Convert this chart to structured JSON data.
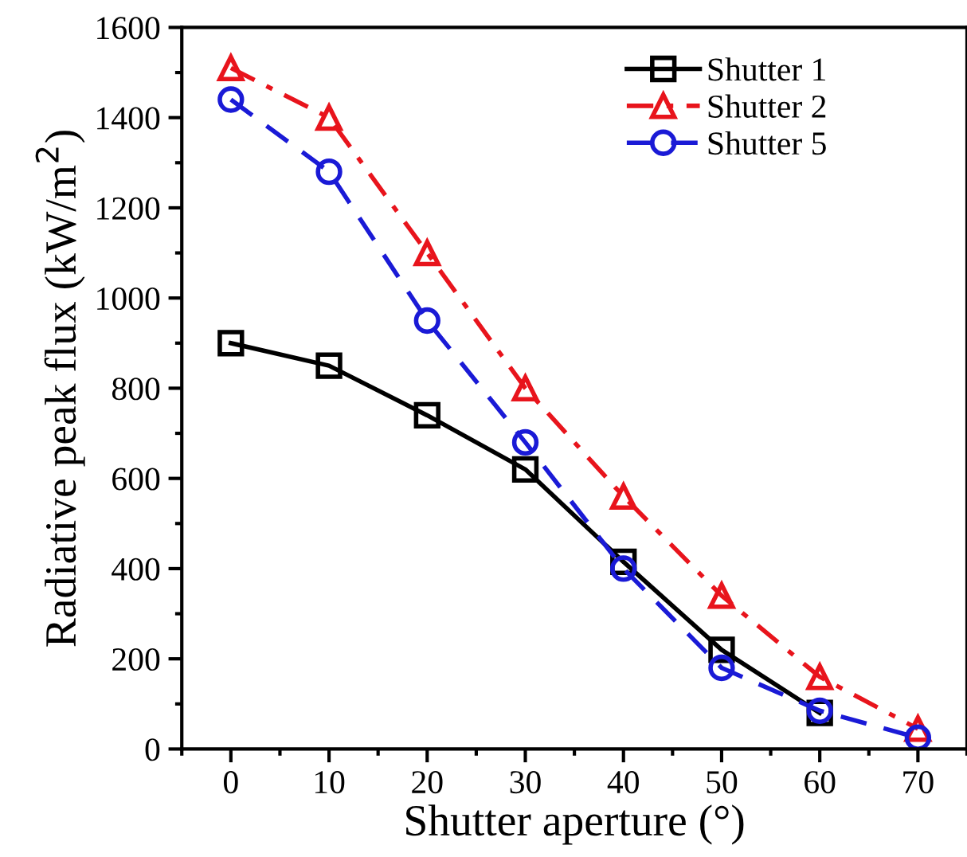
{
  "chart_data": {
    "type": "line",
    "xlabel": "Shutter aperture (°)",
    "ylabel": "Radiative peak flux (kW/m$^{2}$)",
    "x": [
      0,
      10,
      20,
      30,
      40,
      50,
      60,
      70
    ],
    "series": [
      {
        "name": "Shutter 1",
        "color": "#000000",
        "values": [
          900,
          850,
          740,
          620,
          415,
          220,
          80,
          null
        ],
        "marker": "square",
        "line_style": "solid"
      },
      {
        "name": "Shutter 2",
        "color": "#e8141c",
        "values": [
          1510,
          1400,
          1100,
          800,
          560,
          340,
          160,
          45
        ],
        "marker": "triangle",
        "line_style": "dashdot"
      },
      {
        "name": "Shutter 5",
        "color": "#1a1ad6",
        "values": [
          1440,
          1280,
          950,
          680,
          400,
          180,
          85,
          25
        ],
        "marker": "circle",
        "line_style": "dashed"
      }
    ],
    "xlim": [
      -5,
      75
    ],
    "xticks": [
      0,
      10,
      20,
      30,
      40,
      50,
      60,
      70
    ],
    "ylim": [
      0,
      1600
    ],
    "yticks": [
      0,
      200,
      400,
      600,
      800,
      1000,
      1200,
      1400,
      1600
    ],
    "grid": false,
    "legend": "top right"
  }
}
